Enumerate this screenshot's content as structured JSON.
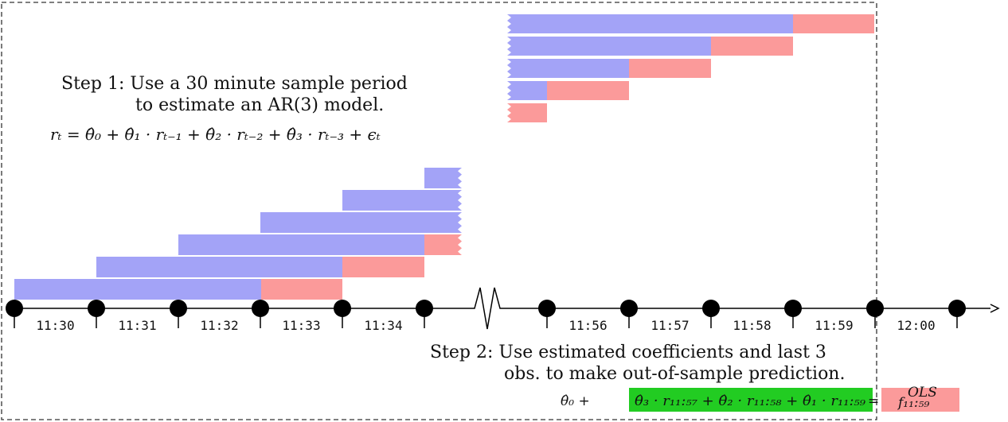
{
  "step1": {
    "line1": "Step 1: Use a 30 minute sample period",
    "line2": "to estimate an AR(3) model.",
    "equation": "rₜ = θ̂₀ + θ̂₁ · rₜ₋₁ + θ̂₂ · rₜ₋₂ + θ̂₃ · rₜ₋₃ + ϵₜ"
  },
  "step2": {
    "line1": "Step 2: Use estimated coefficients and last 3",
    "line2": "obs. to make out-of-sample prediction."
  },
  "timeline": {
    "left_labels": [
      "11:30",
      "11:31",
      "11:32",
      "11:33",
      "11:34"
    ],
    "right_labels": [
      "11:56",
      "11:57",
      "11:58",
      "11:59",
      "12:00"
    ]
  },
  "prediction": {
    "intercept": "θ̂₀  +",
    "green_expression": "θ̂₃ · r₁₁:₅₇ + θ̂₂ · r₁₁:₅₈ + θ̂₁ · r₁₁:₅₉",
    "equals": "=",
    "result": "f₁₁:₅₉",
    "result_superscript": "OLS"
  },
  "colors": {
    "in_sample": "#a3a3f7",
    "out_of_sample": "#fb9a9a",
    "prediction_highlight": "#22cc22",
    "axis": "#000000"
  }
}
